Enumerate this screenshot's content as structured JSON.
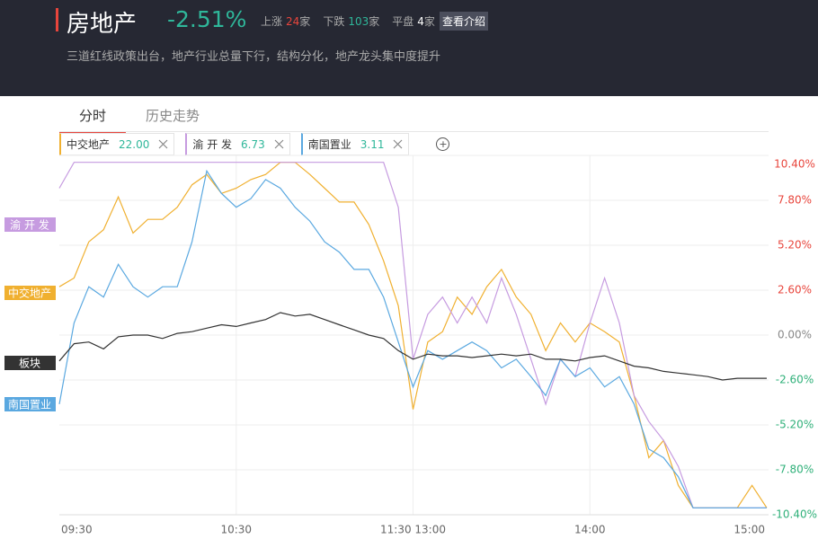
{
  "header": {
    "title": "房地产",
    "change": "-2.51%",
    "stats": [
      {
        "label": "上涨",
        "count": "24",
        "unit": "家"
      },
      {
        "label": "下跌",
        "count": "103",
        "unit": "家"
      },
      {
        "label": "平盘",
        "count": "4",
        "unit": "家"
      }
    ],
    "button": "查看介绍",
    "description": "三道红线政策出台，地产行业总量下行，结构分化，地产龙头集中度提升"
  },
  "tabs": [
    "分时",
    "历史走势"
  ],
  "chart_data": {
    "type": "line",
    "categories": [
      "09:30",
      null,
      null,
      null,
      null,
      null,
      null,
      null,
      null,
      null,
      null,
      null,
      "10:30",
      null,
      null,
      null,
      null,
      null,
      null,
      null,
      null,
      null,
      null,
      null,
      "11:30 13:00",
      null,
      null,
      null,
      null,
      null,
      null,
      null,
      null,
      null,
      null,
      null,
      "14:00",
      null,
      null,
      null,
      null,
      null,
      null,
      null,
      null,
      null,
      null,
      null,
      "15:00"
    ],
    "series": [
      {
        "name": "中交地产",
        "price": "22.00",
        "color": "#f0b030",
        "values": [
          2.8,
          3.3,
          5.4,
          6.1,
          8.0,
          5.9,
          6.7,
          6.7,
          7.4,
          8.7,
          9.3,
          8.2,
          8.5,
          9.0,
          9.3,
          10.0,
          10.0,
          9.3,
          8.5,
          7.7,
          7.7,
          6.4,
          4.3,
          1.7,
          -4.3,
          -0.4,
          0.2,
          2.2,
          1.2,
          2.8,
          3.8,
          2.2,
          1.2,
          -0.9,
          0.7,
          -0.4,
          0.7,
          0.2,
          -0.4,
          -3.5,
          -7.1,
          -6.1,
          -8.7,
          -10.0,
          -10.0,
          -10.0,
          -10.0,
          -8.7,
          -10.0
        ]
      },
      {
        "name": "渝 开 发",
        "price": "6.73",
        "color": "#c69be0",
        "values": [
          8.5,
          10.0,
          10.0,
          10.0,
          10.0,
          10.0,
          10.0,
          10.0,
          10.0,
          10.0,
          10.0,
          10.0,
          10.0,
          10.0,
          10.0,
          10.0,
          10.0,
          10.0,
          10.0,
          10.0,
          10.0,
          10.0,
          10.0,
          7.4,
          -1.4,
          1.2,
          2.2,
          0.7,
          2.2,
          0.7,
          3.3,
          1.2,
          -1.4,
          -4.0,
          -1.4,
          -2.4,
          0.7,
          3.3,
          0.7,
          -3.5,
          -5.0,
          -6.1,
          -7.6,
          -10.0,
          -10.0,
          -10.0,
          -10.0,
          -10.0,
          -10.0
        ]
      },
      {
        "name": "南国置业",
        "price": "3.11",
        "color": "#5aa8e0",
        "values": [
          -4.0,
          0.7,
          2.8,
          2.2,
          4.1,
          2.8,
          2.2,
          2.8,
          2.8,
          5.4,
          9.5,
          8.2,
          7.4,
          7.9,
          9.0,
          8.5,
          7.4,
          6.6,
          5.4,
          4.8,
          3.8,
          3.8,
          2.2,
          -0.4,
          -3.0,
          -0.9,
          -1.4,
          -0.9,
          -0.4,
          -0.9,
          -1.9,
          -1.4,
          -2.4,
          -3.5,
          -1.4,
          -2.4,
          -1.9,
          -3.0,
          -2.4,
          -4.0,
          -6.6,
          -7.1,
          -8.2,
          -10.0,
          -10.0,
          -10.0,
          -10.0,
          -10.0,
          -10.0
        ]
      },
      {
        "name": "板块",
        "color": "#333333",
        "values": [
          -1.5,
          -0.5,
          -0.4,
          -0.8,
          -0.1,
          0.0,
          0.0,
          -0.2,
          0.1,
          0.2,
          0.4,
          0.6,
          0.5,
          0.7,
          0.9,
          1.3,
          1.1,
          1.2,
          0.9,
          0.6,
          0.3,
          0.0,
          -0.2,
          -0.9,
          -1.4,
          -1.1,
          -1.2,
          -1.2,
          -1.3,
          -1.2,
          -1.1,
          -1.2,
          -1.1,
          -1.4,
          -1.4,
          -1.5,
          -1.3,
          -1.2,
          -1.5,
          -1.8,
          -1.9,
          -2.1,
          -2.2,
          -2.3,
          -2.4,
          -2.6,
          -2.5,
          -2.5,
          -2.5
        ]
      }
    ],
    "ylim": [
      -10.4,
      10.4
    ],
    "yticks": [
      {
        "value": 10.4,
        "label": "10.40%"
      },
      {
        "value": 7.8,
        "label": "7.80%"
      },
      {
        "value": 5.2,
        "label": "5.20%"
      },
      {
        "value": 2.6,
        "label": "2.60%"
      },
      {
        "value": 0,
        "label": "0.00%"
      },
      {
        "value": -2.6,
        "label": "-2.60%"
      },
      {
        "value": -5.2,
        "label": "-5.20%"
      },
      {
        "value": -7.8,
        "label": "-7.80%"
      },
      {
        "value": -10.4,
        "label": "-10.40%"
      }
    ],
    "grid": true
  }
}
